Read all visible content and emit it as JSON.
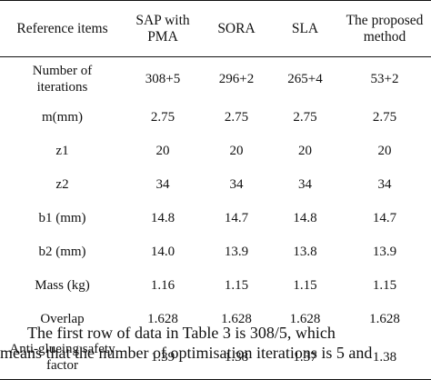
{
  "table": {
    "headers": [
      "Reference items",
      "SAP with PMA",
      "SORA",
      "SLA",
      "The proposed method"
    ],
    "rows": [
      [
        "Number of iterations",
        "308+5",
        "296+2",
        "265+4",
        "53+2"
      ],
      [
        "m(mm)",
        "2.75",
        "2.75",
        "2.75",
        "2.75"
      ],
      [
        "z1",
        "20",
        "20",
        "20",
        "20"
      ],
      [
        "z2",
        "34",
        "34",
        "34",
        "34"
      ],
      [
        "b1 (mm)",
        "14.8",
        "14.7",
        "14.8",
        "14.7"
      ],
      [
        "b2 (mm)",
        "14.0",
        "13.9",
        "13.8",
        "13.9"
      ],
      [
        "Mass (kg)",
        "1.16",
        "1.15",
        "1.15",
        "1.15"
      ],
      [
        "Overlap",
        "1.628",
        "1.628",
        "1.628",
        "1.628"
      ],
      [
        "Anti-glueing safety factor",
        "1.39",
        "1.38",
        "1.37",
        "1.38"
      ]
    ]
  },
  "paragraph": {
    "line1": "The first row of data in Table 3 is 308/5, which",
    "line2": "means that the number of optimisation iterations is 5 and"
  }
}
